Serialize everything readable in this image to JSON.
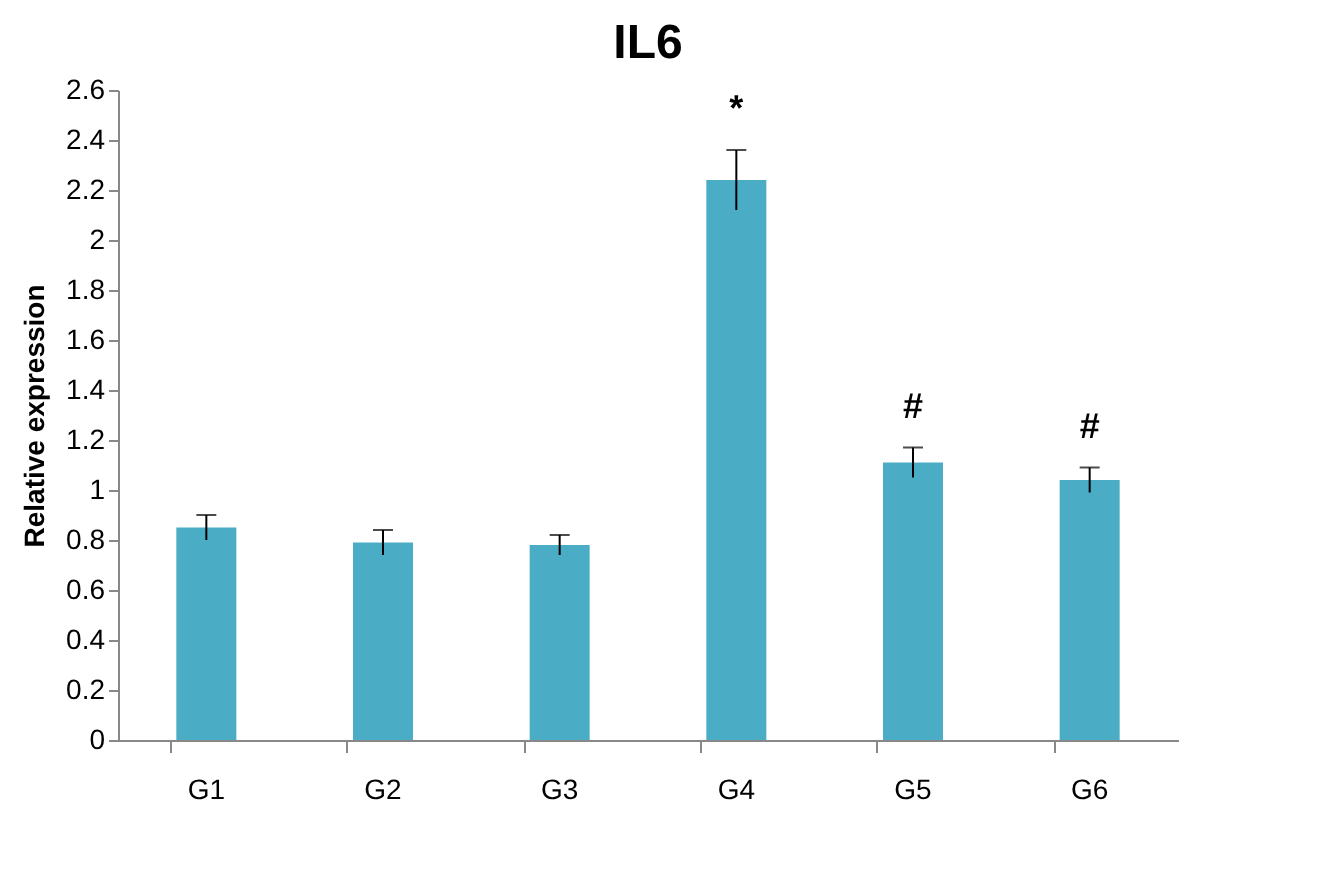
{
  "chart_data": {
    "type": "bar",
    "title": "IL6",
    "ylabel": "Relative expression",
    "categories": [
      "G1",
      "G2",
      "G3",
      "G4",
      "G5",
      "G6"
    ],
    "values": [
      0.85,
      0.79,
      0.78,
      2.24,
      1.11,
      1.04
    ],
    "errors": [
      0.05,
      0.05,
      0.04,
      0.12,
      0.06,
      0.05
    ],
    "color": "#4bacc6",
    "ylim": [
      0,
      2.6
    ],
    "yticks": [
      0,
      0.2,
      0.4,
      0.6,
      0.8,
      1,
      1.2,
      1.4,
      1.6,
      1.8,
      2,
      2.2,
      2.4,
      2.6
    ],
    "grid": false,
    "value_labels": [
      null,
      null,
      null,
      "*",
      "#",
      "#"
    ]
  }
}
